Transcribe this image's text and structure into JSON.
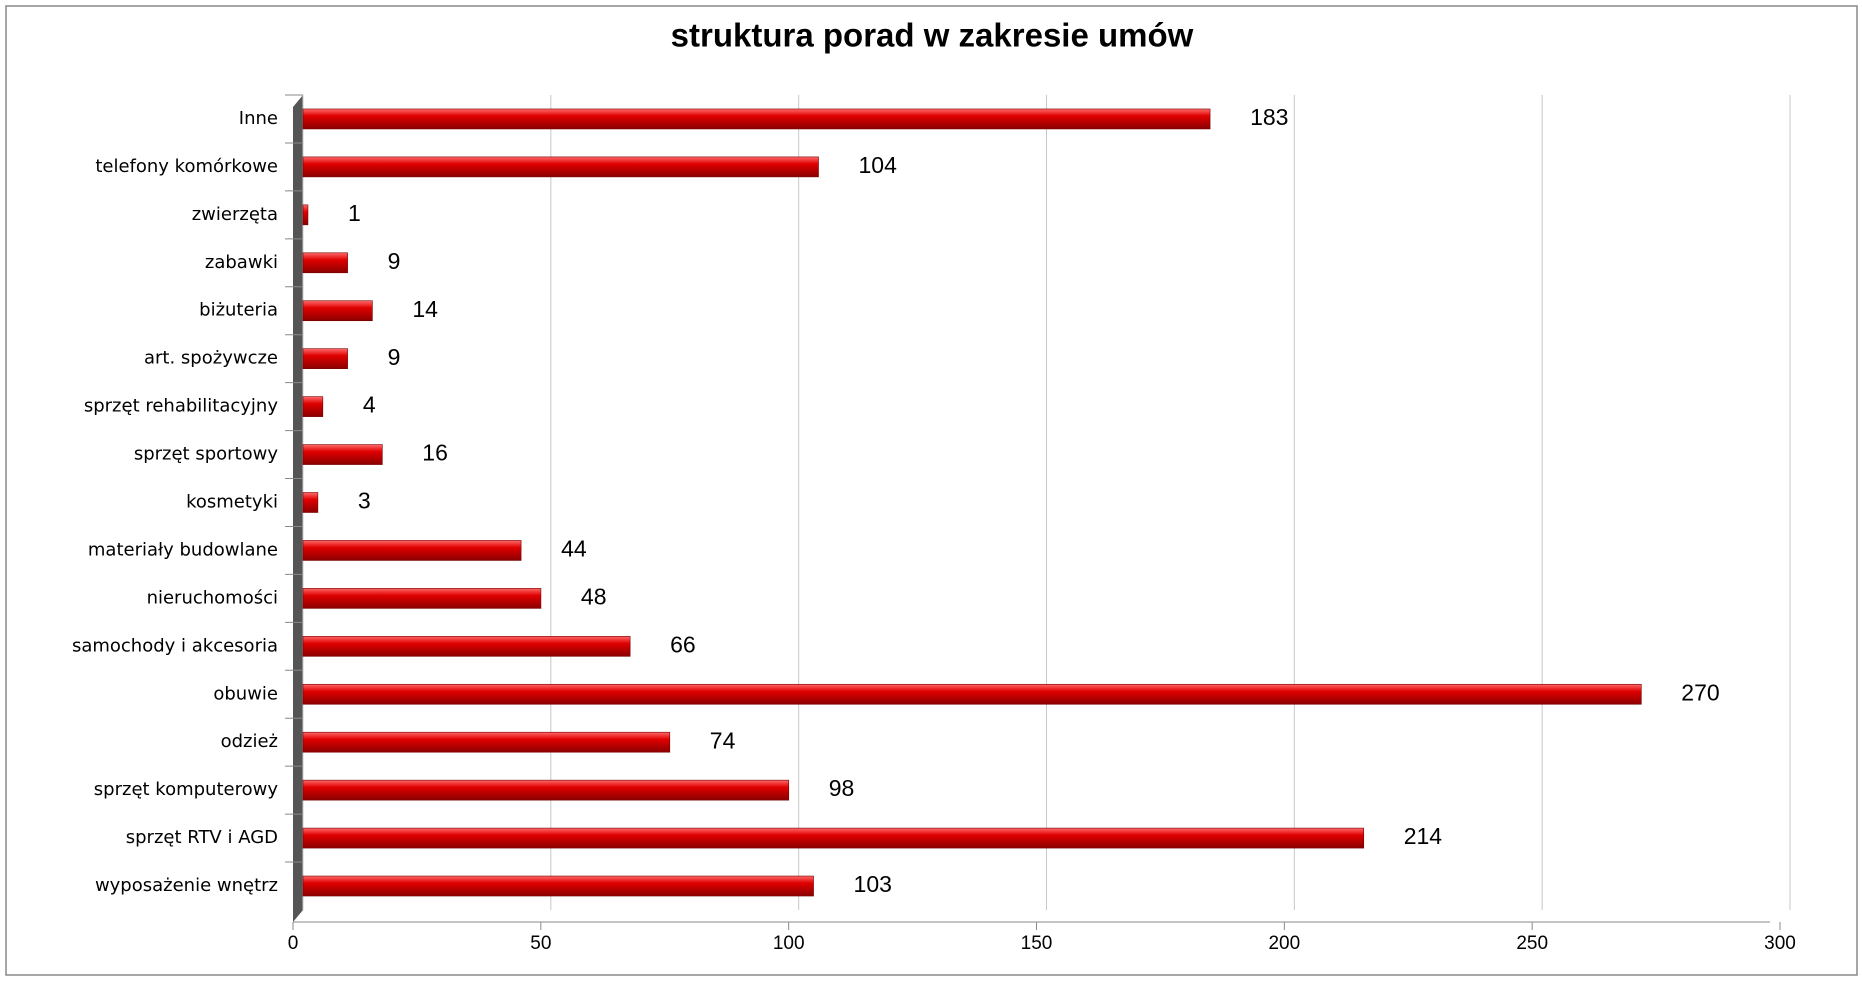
{
  "chart_data": {
    "type": "bar",
    "orientation": "horizontal",
    "title": "struktura porad w zakresie umów",
    "categories": [
      "Inne",
      "telefony komórkowe",
      "zwierzęta",
      "zabawki",
      "biżuteria",
      "art. spożywcze",
      "sprzęt rehabilitacyjny",
      "sprzęt sportowy",
      "kosmetyki",
      "materiały budowlane",
      "nieruchomości",
      "samochody i akcesoria",
      "obuwie",
      "odzież",
      "sprzęt komputerowy",
      "sprzęt RTV i AGD",
      "wyposażenie wnętrz"
    ],
    "values": [
      183,
      104,
      1,
      9,
      14,
      9,
      4,
      16,
      3,
      44,
      48,
      66,
      270,
      74,
      98,
      214,
      103
    ],
    "color": "#e00000",
    "xlim": [
      0,
      300
    ],
    "xticks": [
      0,
      50,
      100,
      150,
      200,
      250,
      300
    ],
    "grid": true
  }
}
